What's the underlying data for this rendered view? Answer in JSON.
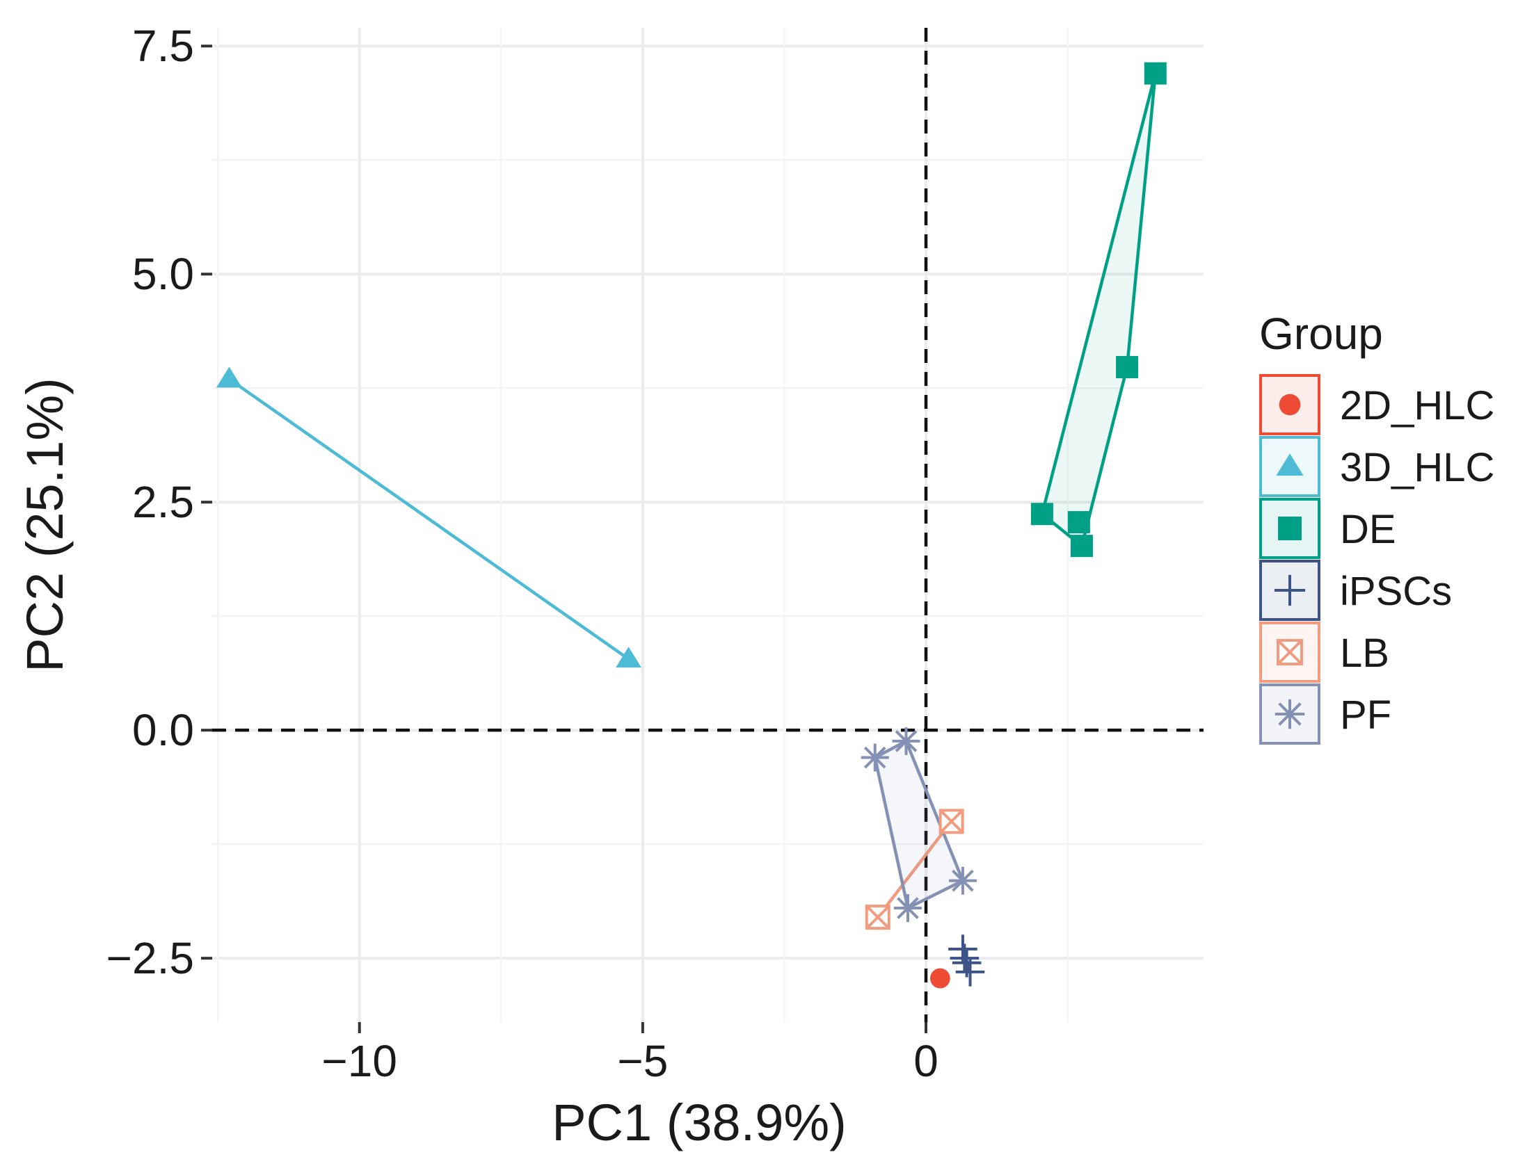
{
  "chart_data": {
    "type": "scatter",
    "xlabel": "PC1 (38.9%)",
    "ylabel": "PC2 (25.1%)",
    "xlim": [
      -12.6,
      4.9
    ],
    "ylim": [
      -3.2,
      7.7
    ],
    "x_ticks": [
      -10,
      -5,
      0
    ],
    "x_tick_labels": [
      "−10",
      "−5",
      "0"
    ],
    "y_ticks": [
      -2.5,
      0,
      2.5,
      5,
      7.5
    ],
    "y_tick_labels": [
      "−2.5",
      "0.0",
      "2.5",
      "5.0",
      "7.5"
    ],
    "reference_lines": {
      "x": 0,
      "y": 0,
      "style": "dashed"
    },
    "grid": true,
    "legend": {
      "title": "Group",
      "position": "right"
    },
    "series": [
      {
        "name": "2D_HLC",
        "color": "#EE4B35",
        "marker": "circle",
        "points": [
          [
            0.25,
            -2.72
          ]
        ],
        "hull": []
      },
      {
        "name": "3D_HLC",
        "color": "#4DBBD5",
        "marker": "triangle",
        "points": [
          [
            -12.3,
            3.85
          ],
          [
            -5.25,
            0.78
          ]
        ],
        "hull": [
          [
            -12.3,
            3.85
          ],
          [
            -5.25,
            0.78
          ]
        ]
      },
      {
        "name": "DE",
        "color": "#00A087",
        "marker": "square",
        "points": [
          [
            4.05,
            7.2
          ],
          [
            3.55,
            3.98
          ],
          [
            2.05,
            2.37
          ],
          [
            2.7,
            2.28
          ],
          [
            2.75,
            2.02
          ]
        ],
        "hull": [
          [
            2.05,
            2.37
          ],
          [
            2.75,
            2.02
          ],
          [
            3.55,
            3.98
          ],
          [
            4.05,
            7.2
          ]
        ]
      },
      {
        "name": "iPSCs",
        "color": "#3C5488",
        "marker": "plus",
        "points": [
          [
            0.65,
            -2.4
          ],
          [
            0.72,
            -2.55
          ],
          [
            0.78,
            -2.65
          ],
          [
            0.68,
            -2.5
          ]
        ],
        "hull": [
          [
            0.65,
            -2.4
          ],
          [
            0.78,
            -2.65
          ]
        ]
      },
      {
        "name": "LB",
        "color": "#F39B7F",
        "marker": "square-x",
        "points": [
          [
            0.45,
            -1.0
          ],
          [
            -0.85,
            -2.05
          ]
        ],
        "hull": [
          [
            0.45,
            -1.0
          ],
          [
            -0.85,
            -2.05
          ]
        ]
      },
      {
        "name": "PF",
        "color": "#8491B4",
        "marker": "asterisk",
        "points": [
          [
            -0.9,
            -0.3
          ],
          [
            -0.35,
            -0.12
          ],
          [
            0.65,
            -1.65
          ],
          [
            -0.32,
            -1.95
          ]
        ],
        "hull": [
          [
            -0.9,
            -0.3
          ],
          [
            -0.35,
            -0.12
          ],
          [
            0.65,
            -1.65
          ],
          [
            -0.32,
            -1.95
          ]
        ]
      }
    ]
  }
}
